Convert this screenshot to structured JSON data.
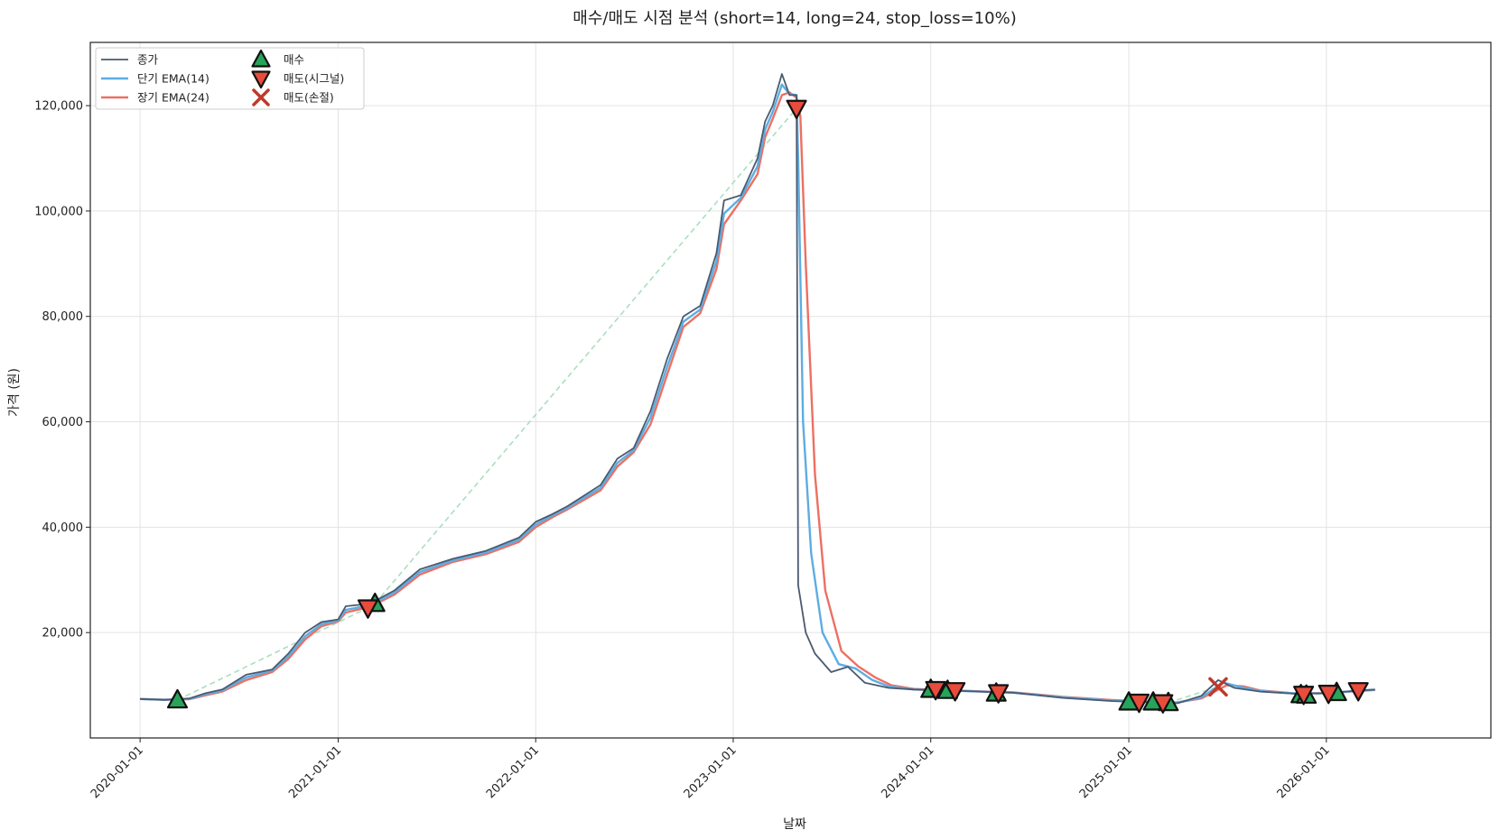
{
  "chart_data": {
    "type": "line",
    "title": "매수/매도 시점 분석 (short=14, long=24, stop_loss=10%)",
    "xlabel": "날짜",
    "ylabel": "가격 (원)",
    "x_range": [
      "2019-10-01",
      "2026-11-01"
    ],
    "ylim": [
      0,
      132000
    ],
    "y_ticks": [
      20000,
      40000,
      60000,
      80000,
      100000,
      120000
    ],
    "y_tick_labels": [
      "20,000",
      "40,000",
      "60,000",
      "80,000",
      "100,000",
      "120,000"
    ],
    "x_ticks": [
      "2020-01-01",
      "2021-01-01",
      "2022-01-01",
      "2023-01-01",
      "2024-01-01",
      "2025-01-01",
      "2026-01-01"
    ],
    "x_tick_labels": [
      "2020-01-01",
      "2021-01-01",
      "2022-01-01",
      "2023-01-01",
      "2024-01-01",
      "2025-01-01",
      "2026-01-01"
    ],
    "grid": true,
    "legend_position": "top-left",
    "colors": {
      "close": "#4a5a70",
      "ema_short": "#5dade2",
      "ema_long": "#ec7063",
      "buy": "#27a35a",
      "sell_signal": "#e74c3c",
      "sell_stop": "#c0392b",
      "trade_line": "#a9dfbf"
    },
    "legend": [
      {
        "key": "close",
        "label": "종가",
        "kind": "line"
      },
      {
        "key": "ema_short",
        "label": "단기 EMA(14)",
        "kind": "line"
      },
      {
        "key": "ema_long",
        "label": "장기 EMA(24)",
        "kind": "line"
      },
      {
        "key": "buy",
        "label": "매수",
        "kind": "triangle-up"
      },
      {
        "key": "sell_signal",
        "label": "매도(시그널)",
        "kind": "triangle-down"
      },
      {
        "key": "sell_stop",
        "label": "매도(손절)",
        "kind": "x"
      }
    ],
    "series": [
      {
        "name": "종가",
        "key": "close",
        "points": [
          [
            "2020-01-01",
            7400
          ],
          [
            "2020-02-15",
            7200
          ],
          [
            "2020-04-01",
            7500
          ],
          [
            "2020-05-01",
            8500
          ],
          [
            "2020-06-01",
            9200
          ],
          [
            "2020-07-15",
            12000
          ],
          [
            "2020-09-01",
            13000
          ],
          [
            "2020-10-01",
            16000
          ],
          [
            "2020-11-01",
            20000
          ],
          [
            "2020-12-01",
            22000
          ],
          [
            "2021-01-01",
            22500
          ],
          [
            "2021-01-15",
            25000
          ],
          [
            "2021-03-01",
            25500
          ],
          [
            "2021-04-15",
            28000
          ],
          [
            "2021-06-01",
            32000
          ],
          [
            "2021-08-01",
            34000
          ],
          [
            "2021-10-01",
            35500
          ],
          [
            "2021-12-01",
            38000
          ],
          [
            "2022-01-01",
            41000
          ],
          [
            "2022-02-01",
            42500
          ],
          [
            "2022-03-01",
            44000
          ],
          [
            "2022-05-01",
            48000
          ],
          [
            "2022-06-01",
            53000
          ],
          [
            "2022-07-01",
            55000
          ],
          [
            "2022-08-01",
            62000
          ],
          [
            "2022-09-01",
            72000
          ],
          [
            "2022-10-01",
            80000
          ],
          [
            "2022-11-01",
            82000
          ],
          [
            "2022-12-01",
            92000
          ],
          [
            "2022-12-15",
            102000
          ],
          [
            "2023-01-15",
            103000
          ],
          [
            "2023-02-15",
            110000
          ],
          [
            "2023-03-01",
            117000
          ],
          [
            "2023-03-15",
            120000
          ],
          [
            "2023-04-01",
            126000
          ],
          [
            "2023-04-15",
            122000
          ],
          [
            "2023-04-28",
            122000
          ],
          [
            "2023-05-01",
            29000
          ],
          [
            "2023-05-15",
            20000
          ],
          [
            "2023-06-01",
            16000
          ],
          [
            "2023-07-01",
            12500
          ],
          [
            "2023-08-01",
            13500
          ],
          [
            "2023-09-01",
            10500
          ],
          [
            "2023-10-15",
            9500
          ],
          [
            "2023-12-01",
            9200
          ],
          [
            "2024-02-01",
            9000
          ],
          [
            "2024-04-01",
            8800
          ],
          [
            "2024-06-01",
            8600
          ],
          [
            "2024-09-01",
            7600
          ],
          [
            "2024-12-01",
            7000
          ],
          [
            "2025-02-01",
            6800
          ],
          [
            "2025-04-01",
            6600
          ],
          [
            "2025-05-15",
            8000
          ],
          [
            "2025-06-15",
            11000
          ],
          [
            "2025-07-15",
            9500
          ],
          [
            "2025-09-01",
            8800
          ],
          [
            "2025-11-01",
            8400
          ],
          [
            "2026-01-01",
            8500
          ],
          [
            "2026-03-01",
            9000
          ],
          [
            "2026-04-01",
            9200
          ]
        ]
      },
      {
        "name": "단기 EMA(14)",
        "key": "ema_short",
        "points": [
          [
            "2020-01-01",
            7400
          ],
          [
            "2020-02-15",
            7250
          ],
          [
            "2020-04-01",
            7400
          ],
          [
            "2020-05-01",
            8300
          ],
          [
            "2020-06-01",
            9000
          ],
          [
            "2020-07-15",
            11500
          ],
          [
            "2020-09-01",
            12800
          ],
          [
            "2020-10-01",
            15500
          ],
          [
            "2020-11-01",
            19300
          ],
          [
            "2020-12-01",
            21600
          ],
          [
            "2021-01-01",
            22300
          ],
          [
            "2021-01-15",
            24300
          ],
          [
            "2021-03-01",
            25200
          ],
          [
            "2021-04-15",
            27600
          ],
          [
            "2021-06-01",
            31500
          ],
          [
            "2021-08-01",
            33700
          ],
          [
            "2021-10-01",
            35200
          ],
          [
            "2021-12-01",
            37600
          ],
          [
            "2022-01-01",
            40500
          ],
          [
            "2022-02-01",
            42200
          ],
          [
            "2022-03-01",
            43700
          ],
          [
            "2022-05-01",
            47500
          ],
          [
            "2022-06-01",
            52200
          ],
          [
            "2022-07-01",
            54600
          ],
          [
            "2022-08-01",
            60800
          ],
          [
            "2022-09-01",
            70500
          ],
          [
            "2022-10-01",
            79000
          ],
          [
            "2022-11-01",
            81300
          ],
          [
            "2022-12-01",
            90500
          ],
          [
            "2022-12-15",
            99500
          ],
          [
            "2023-01-15",
            102500
          ],
          [
            "2023-02-15",
            108500
          ],
          [
            "2023-03-01",
            115500
          ],
          [
            "2023-03-15",
            118800
          ],
          [
            "2023-04-01",
            124000
          ],
          [
            "2023-04-15",
            122200
          ],
          [
            "2023-04-28",
            122000
          ],
          [
            "2023-05-01",
            110000
          ],
          [
            "2023-05-10",
            60000
          ],
          [
            "2023-05-25",
            35000
          ],
          [
            "2023-06-15",
            20000
          ],
          [
            "2023-07-15",
            14000
          ],
          [
            "2023-08-15",
            13200
          ],
          [
            "2023-09-15",
            11000
          ],
          [
            "2023-10-15",
            9800
          ],
          [
            "2023-12-01",
            9200
          ],
          [
            "2024-02-01",
            9000
          ],
          [
            "2024-04-01",
            8800
          ],
          [
            "2024-06-01",
            8600
          ],
          [
            "2024-09-01",
            7700
          ],
          [
            "2024-12-01",
            7100
          ],
          [
            "2025-02-01",
            6850
          ],
          [
            "2025-04-01",
            6700
          ],
          [
            "2025-05-15",
            7700
          ],
          [
            "2025-06-25",
            10500
          ],
          [
            "2025-07-25",
            9700
          ],
          [
            "2025-09-01",
            8900
          ],
          [
            "2025-11-01",
            8450
          ],
          [
            "2026-01-01",
            8500
          ],
          [
            "2026-03-01",
            8950
          ],
          [
            "2026-04-01",
            9150
          ]
        ]
      },
      {
        "name": "장기 EMA(24)",
        "key": "ema_long",
        "points": [
          [
            "2020-01-01",
            7400
          ],
          [
            "2020-02-15",
            7300
          ],
          [
            "2020-04-01",
            7350
          ],
          [
            "2020-05-01",
            8100
          ],
          [
            "2020-06-01",
            8800
          ],
          [
            "2020-07-15",
            11000
          ],
          [
            "2020-09-01",
            12500
          ],
          [
            "2020-10-01",
            15000
          ],
          [
            "2020-11-01",
            18700
          ],
          [
            "2020-12-01",
            21200
          ],
          [
            "2021-01-01",
            22100
          ],
          [
            "2021-01-15",
            23800
          ],
          [
            "2021-03-01",
            24900
          ],
          [
            "2021-04-15",
            27200
          ],
          [
            "2021-06-01",
            31000
          ],
          [
            "2021-08-01",
            33400
          ],
          [
            "2021-10-01",
            34900
          ],
          [
            "2021-12-01",
            37200
          ],
          [
            "2022-01-01",
            40000
          ],
          [
            "2022-02-01",
            41900
          ],
          [
            "2022-03-01",
            43400
          ],
          [
            "2022-05-01",
            47000
          ],
          [
            "2022-06-01",
            51500
          ],
          [
            "2022-07-01",
            54200
          ],
          [
            "2022-08-01",
            59500
          ],
          [
            "2022-09-01",
            69000
          ],
          [
            "2022-10-01",
            78000
          ],
          [
            "2022-11-01",
            80600
          ],
          [
            "2022-12-01",
            89000
          ],
          [
            "2022-12-15",
            97500
          ],
          [
            "2023-01-15",
            102000
          ],
          [
            "2023-02-15",
            107000
          ],
          [
            "2023-03-01",
            114000
          ],
          [
            "2023-03-15",
            117500
          ],
          [
            "2023-04-01",
            122000
          ],
          [
            "2023-04-15",
            122500
          ],
          [
            "2023-04-28",
            121500
          ],
          [
            "2023-05-05",
            118000
          ],
          [
            "2023-05-15",
            90000
          ],
          [
            "2023-06-01",
            50000
          ],
          [
            "2023-06-20",
            28000
          ],
          [
            "2023-07-20",
            16500
          ],
          [
            "2023-08-20",
            13600
          ],
          [
            "2023-09-20",
            11500
          ],
          [
            "2023-10-20",
            10000
          ],
          [
            "2023-12-01",
            9300
          ],
          [
            "2024-02-01",
            9050
          ],
          [
            "2024-04-01",
            8850
          ],
          [
            "2024-06-01",
            8650
          ],
          [
            "2024-09-01",
            7800
          ],
          [
            "2024-12-01",
            7200
          ],
          [
            "2025-02-01",
            6900
          ],
          [
            "2025-04-01",
            6750
          ],
          [
            "2025-05-15",
            7500
          ],
          [
            "2025-07-01",
            10000
          ],
          [
            "2025-08-01",
            9800
          ],
          [
            "2025-09-01",
            9000
          ],
          [
            "2025-11-01",
            8500
          ],
          [
            "2026-01-01",
            8500
          ],
          [
            "2026-03-01",
            8900
          ],
          [
            "2026-04-01",
            9100
          ]
        ]
      }
    ],
    "buy_points": [
      [
        "2020-03-10",
        7200
      ],
      [
        "2021-03-10",
        25500
      ],
      [
        "2024-01-01",
        9200
      ],
      [
        "2024-02-01",
        9000
      ],
      [
        "2024-05-01",
        8500
      ],
      [
        "2025-01-01",
        6800
      ],
      [
        "2025-02-15",
        6800
      ],
      [
        "2025-03-15",
        6700
      ],
      [
        "2025-11-15",
        8200
      ],
      [
        "2025-11-25",
        8100
      ],
      [
        "2026-01-20",
        8600
      ]
    ],
    "sell_signal_points": [
      [
        "2021-02-25",
        24700
      ],
      [
        "2023-04-28",
        119500
      ],
      [
        "2024-01-10",
        9200
      ],
      [
        "2024-02-15",
        9000
      ],
      [
        "2024-05-05",
        8600
      ],
      [
        "2025-01-20",
        6800
      ],
      [
        "2025-03-05",
        6700
      ],
      [
        "2025-11-20",
        8300
      ],
      [
        "2026-01-05",
        8500
      ],
      [
        "2026-03-01",
        9000
      ]
    ],
    "sell_stop_points": [
      [
        "2025-06-15",
        9700
      ]
    ],
    "trade_pairs": [
      [
        [
          "2020-03-10",
          7200
        ],
        [
          "2021-02-25",
          24700
        ]
      ],
      [
        [
          "2021-03-10",
          25500
        ],
        [
          "2023-04-28",
          119500
        ]
      ],
      [
        [
          "2024-01-01",
          9200
        ],
        [
          "2024-01-10",
          9200
        ]
      ],
      [
        [
          "2024-02-01",
          9000
        ],
        [
          "2024-02-15",
          9000
        ]
      ],
      [
        [
          "2024-05-01",
          8500
        ],
        [
          "2024-05-05",
          8600
        ]
      ],
      [
        [
          "2025-01-01",
          6800
        ],
        [
          "2025-01-20",
          6800
        ]
      ],
      [
        [
          "2025-02-15",
          6800
        ],
        [
          "2025-03-05",
          6700
        ]
      ],
      [
        [
          "2025-03-15",
          6700
        ],
        [
          "2025-06-15",
          9700
        ]
      ],
      [
        [
          "2025-11-15",
          8200
        ],
        [
          "2025-11-20",
          8300
        ]
      ],
      [
        [
          "2025-11-25",
          8100
        ],
        [
          "2026-01-05",
          8500
        ]
      ],
      [
        [
          "2026-01-20",
          8600
        ],
        [
          "2026-03-01",
          9000
        ]
      ]
    ]
  }
}
